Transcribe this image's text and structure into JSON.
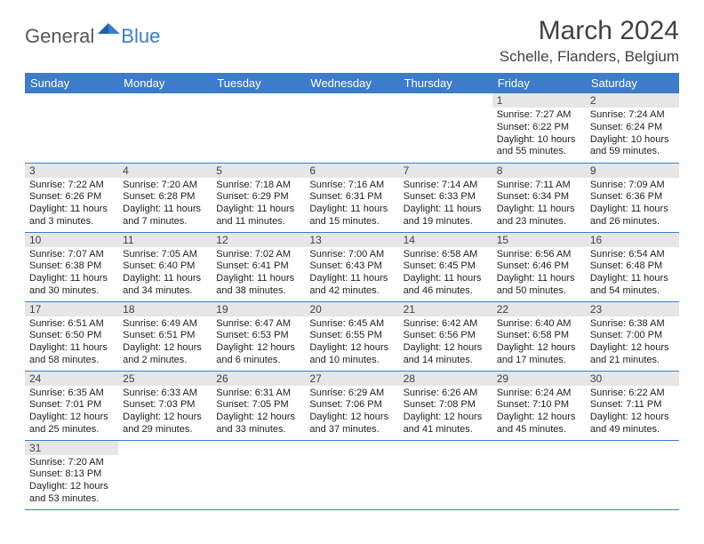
{
  "logo": {
    "general": "General",
    "blue": "Blue"
  },
  "title": "March 2024",
  "location": "Schelle, Flanders, Belgium",
  "day_headers": [
    "Sunday",
    "Monday",
    "Tuesday",
    "Wednesday",
    "Thursday",
    "Friday",
    "Saturday"
  ],
  "colors": {
    "header_bg": "#3d7cc9",
    "header_fg": "#ffffff",
    "daynum_bg": "#e6e6e6",
    "row_border": "#3d7cc9",
    "text": "#404244",
    "logo_gray": "#55575a",
    "logo_blue": "#3d7cc9"
  },
  "weeks": [
    [
      null,
      null,
      null,
      null,
      null,
      {
        "n": "1",
        "sr": "Sunrise: 7:27 AM",
        "ss": "Sunset: 6:22 PM",
        "d1": "Daylight: 10 hours",
        "d2": "and 55 minutes."
      },
      {
        "n": "2",
        "sr": "Sunrise: 7:24 AM",
        "ss": "Sunset: 6:24 PM",
        "d1": "Daylight: 10 hours",
        "d2": "and 59 minutes."
      }
    ],
    [
      {
        "n": "3",
        "sr": "Sunrise: 7:22 AM",
        "ss": "Sunset: 6:26 PM",
        "d1": "Daylight: 11 hours",
        "d2": "and 3 minutes."
      },
      {
        "n": "4",
        "sr": "Sunrise: 7:20 AM",
        "ss": "Sunset: 6:28 PM",
        "d1": "Daylight: 11 hours",
        "d2": "and 7 minutes."
      },
      {
        "n": "5",
        "sr": "Sunrise: 7:18 AM",
        "ss": "Sunset: 6:29 PM",
        "d1": "Daylight: 11 hours",
        "d2": "and 11 minutes."
      },
      {
        "n": "6",
        "sr": "Sunrise: 7:16 AM",
        "ss": "Sunset: 6:31 PM",
        "d1": "Daylight: 11 hours",
        "d2": "and 15 minutes."
      },
      {
        "n": "7",
        "sr": "Sunrise: 7:14 AM",
        "ss": "Sunset: 6:33 PM",
        "d1": "Daylight: 11 hours",
        "d2": "and 19 minutes."
      },
      {
        "n": "8",
        "sr": "Sunrise: 7:11 AM",
        "ss": "Sunset: 6:34 PM",
        "d1": "Daylight: 11 hours",
        "d2": "and 23 minutes."
      },
      {
        "n": "9",
        "sr": "Sunrise: 7:09 AM",
        "ss": "Sunset: 6:36 PM",
        "d1": "Daylight: 11 hours",
        "d2": "and 26 minutes."
      }
    ],
    [
      {
        "n": "10",
        "sr": "Sunrise: 7:07 AM",
        "ss": "Sunset: 6:38 PM",
        "d1": "Daylight: 11 hours",
        "d2": "and 30 minutes."
      },
      {
        "n": "11",
        "sr": "Sunrise: 7:05 AM",
        "ss": "Sunset: 6:40 PM",
        "d1": "Daylight: 11 hours",
        "d2": "and 34 minutes."
      },
      {
        "n": "12",
        "sr": "Sunrise: 7:02 AM",
        "ss": "Sunset: 6:41 PM",
        "d1": "Daylight: 11 hours",
        "d2": "and 38 minutes."
      },
      {
        "n": "13",
        "sr": "Sunrise: 7:00 AM",
        "ss": "Sunset: 6:43 PM",
        "d1": "Daylight: 11 hours",
        "d2": "and 42 minutes."
      },
      {
        "n": "14",
        "sr": "Sunrise: 6:58 AM",
        "ss": "Sunset: 6:45 PM",
        "d1": "Daylight: 11 hours",
        "d2": "and 46 minutes."
      },
      {
        "n": "15",
        "sr": "Sunrise: 6:56 AM",
        "ss": "Sunset: 6:46 PM",
        "d1": "Daylight: 11 hours",
        "d2": "and 50 minutes."
      },
      {
        "n": "16",
        "sr": "Sunrise: 6:54 AM",
        "ss": "Sunset: 6:48 PM",
        "d1": "Daylight: 11 hours",
        "d2": "and 54 minutes."
      }
    ],
    [
      {
        "n": "17",
        "sr": "Sunrise: 6:51 AM",
        "ss": "Sunset: 6:50 PM",
        "d1": "Daylight: 11 hours",
        "d2": "and 58 minutes."
      },
      {
        "n": "18",
        "sr": "Sunrise: 6:49 AM",
        "ss": "Sunset: 6:51 PM",
        "d1": "Daylight: 12 hours",
        "d2": "and 2 minutes."
      },
      {
        "n": "19",
        "sr": "Sunrise: 6:47 AM",
        "ss": "Sunset: 6:53 PM",
        "d1": "Daylight: 12 hours",
        "d2": "and 6 minutes."
      },
      {
        "n": "20",
        "sr": "Sunrise: 6:45 AM",
        "ss": "Sunset: 6:55 PM",
        "d1": "Daylight: 12 hours",
        "d2": "and 10 minutes."
      },
      {
        "n": "21",
        "sr": "Sunrise: 6:42 AM",
        "ss": "Sunset: 6:56 PM",
        "d1": "Daylight: 12 hours",
        "d2": "and 14 minutes."
      },
      {
        "n": "22",
        "sr": "Sunrise: 6:40 AM",
        "ss": "Sunset: 6:58 PM",
        "d1": "Daylight: 12 hours",
        "d2": "and 17 minutes."
      },
      {
        "n": "23",
        "sr": "Sunrise: 6:38 AM",
        "ss": "Sunset: 7:00 PM",
        "d1": "Daylight: 12 hours",
        "d2": "and 21 minutes."
      }
    ],
    [
      {
        "n": "24",
        "sr": "Sunrise: 6:35 AM",
        "ss": "Sunset: 7:01 PM",
        "d1": "Daylight: 12 hours",
        "d2": "and 25 minutes."
      },
      {
        "n": "25",
        "sr": "Sunrise: 6:33 AM",
        "ss": "Sunset: 7:03 PM",
        "d1": "Daylight: 12 hours",
        "d2": "and 29 minutes."
      },
      {
        "n": "26",
        "sr": "Sunrise: 6:31 AM",
        "ss": "Sunset: 7:05 PM",
        "d1": "Daylight: 12 hours",
        "d2": "and 33 minutes."
      },
      {
        "n": "27",
        "sr": "Sunrise: 6:29 AM",
        "ss": "Sunset: 7:06 PM",
        "d1": "Daylight: 12 hours",
        "d2": "and 37 minutes."
      },
      {
        "n": "28",
        "sr": "Sunrise: 6:26 AM",
        "ss": "Sunset: 7:08 PM",
        "d1": "Daylight: 12 hours",
        "d2": "and 41 minutes."
      },
      {
        "n": "29",
        "sr": "Sunrise: 6:24 AM",
        "ss": "Sunset: 7:10 PM",
        "d1": "Daylight: 12 hours",
        "d2": "and 45 minutes."
      },
      {
        "n": "30",
        "sr": "Sunrise: 6:22 AM",
        "ss": "Sunset: 7:11 PM",
        "d1": "Daylight: 12 hours",
        "d2": "and 49 minutes."
      }
    ],
    [
      {
        "n": "31",
        "sr": "Sunrise: 7:20 AM",
        "ss": "Sunset: 8:13 PM",
        "d1": "Daylight: 12 hours",
        "d2": "and 53 minutes."
      },
      null,
      null,
      null,
      null,
      null,
      null
    ]
  ]
}
